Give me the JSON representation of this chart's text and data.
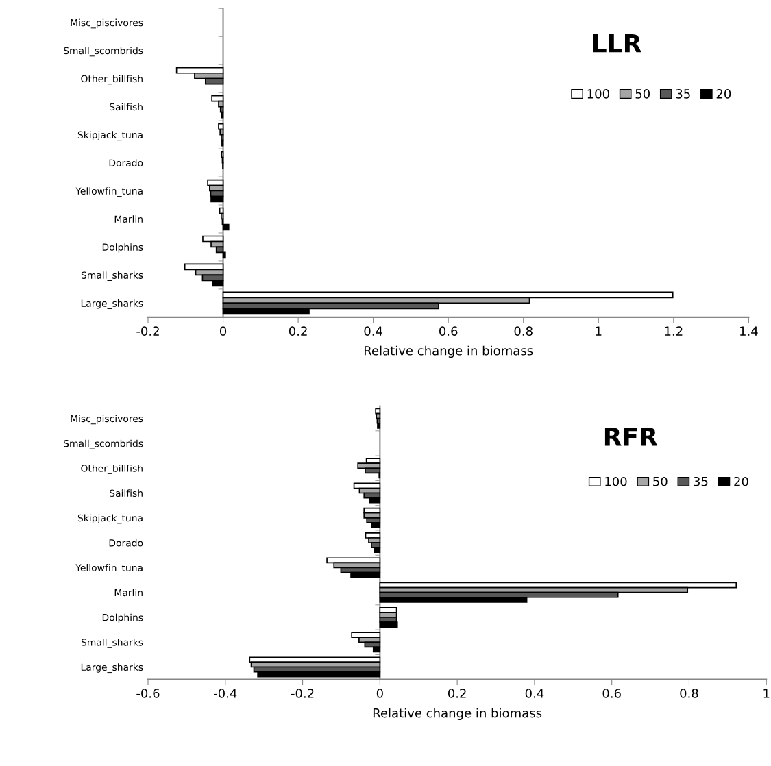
{
  "chart_data": [
    {
      "type": "bar",
      "orientation": "horizontal",
      "annotations": [
        "LLR"
      ],
      "xlabel": "Relative change in biomass",
      "categories": [
        "Misc_piscivores",
        "Small_scombrids",
        "Other_billfish",
        "Sailfish",
        "Skipjack_tuna",
        "Dorado",
        "Yellowfin_tuna",
        "Marlin",
        "Dolphins",
        "Small_sharks",
        "Large_sharks"
      ],
      "series": [
        {
          "name": "100",
          "color": "#ffffff",
          "values": [
            0,
            0,
            -0.124,
            -0.03,
            -0.012,
            -0.004,
            -0.041,
            -0.009,
            -0.054,
            -0.102,
            1.198
          ]
        },
        {
          "name": "50",
          "color": "#a6a6a6",
          "values": [
            0,
            0,
            -0.076,
            -0.012,
            -0.008,
            -0.002,
            -0.036,
            -0.005,
            -0.032,
            -0.073,
            0.816
          ]
        },
        {
          "name": "35",
          "color": "#595959",
          "values": [
            0,
            0,
            -0.047,
            -0.007,
            -0.005,
            -0.001,
            -0.033,
            -0.002,
            -0.018,
            -0.055,
            0.574
          ]
        },
        {
          "name": "20",
          "color": "#000000",
          "values": [
            0,
            0,
            0,
            -0.004,
            -0.003,
            0,
            -0.032,
            0.015,
            0.006,
            -0.027,
            0.229
          ]
        }
      ],
      "xlim": [
        -0.2,
        1.4
      ],
      "xticks": [
        -0.2,
        0,
        0.2,
        0.4,
        0.6,
        0.8,
        1,
        1.2,
        1.4
      ],
      "legend": "right"
    },
    {
      "type": "bar",
      "orientation": "horizontal",
      "annotations": [
        "RFR"
      ],
      "xlabel": "Relative change in biomass",
      "categories": [
        "Misc_piscivores",
        "Small_scombrids",
        "Other_billfish",
        "Sailfish",
        "Skipjack_tuna",
        "Dorado",
        "Yellowfin_tuna",
        "Marlin",
        "Dolphins",
        "Small_sharks",
        "Large_sharks"
      ],
      "series": [
        {
          "name": "100",
          "color": "#ffffff",
          "values": [
            -0.011,
            0,
            -0.035,
            -0.067,
            -0.041,
            -0.037,
            -0.137,
            0.922,
            0.043,
            -0.073,
            -0.337
          ]
        },
        {
          "name": "50",
          "color": "#a6a6a6",
          "values": [
            -0.009,
            0,
            -0.057,
            -0.053,
            -0.041,
            -0.029,
            -0.119,
            0.796,
            0.043,
            -0.054,
            -0.333
          ]
        },
        {
          "name": "35",
          "color": "#595959",
          "values": [
            -0.007,
            0,
            -0.038,
            -0.041,
            -0.034,
            -0.022,
            -0.101,
            0.616,
            0.043,
            -0.039,
            -0.326
          ]
        },
        {
          "name": "20",
          "color": "#000000",
          "values": [
            -0.006,
            0,
            -0.002,
            -0.027,
            -0.022,
            -0.014,
            -0.075,
            0.38,
            0.045,
            -0.017,
            -0.316
          ]
        }
      ],
      "xlim": [
        -0.6,
        1
      ],
      "xticks": [
        -0.6,
        -0.4,
        -0.2,
        0,
        0.2,
        0.4,
        0.6,
        0.8,
        1
      ],
      "legend": "right"
    }
  ]
}
